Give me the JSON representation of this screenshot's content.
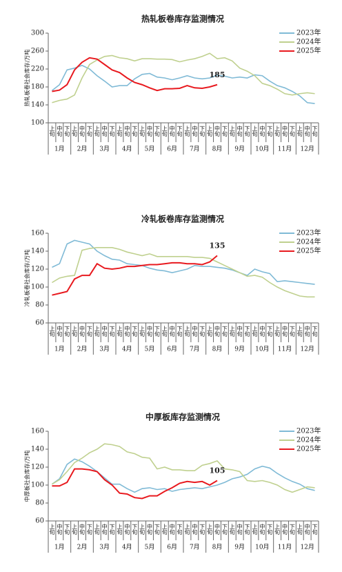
{
  "chart_data": [
    {
      "type": "line",
      "title": "热轧板卷库存监测情况",
      "y_label": "热轧板卷社会库存/万吨",
      "annotation": "185",
      "categories": [
        "上旬",
        "中旬",
        "下旬",
        "上旬",
        "中旬",
        "下旬",
        "上旬",
        "中旬",
        "下旬",
        "上旬",
        "中旬",
        "下旬",
        "上旬",
        "中旬",
        "下旬",
        "上旬",
        "中旬",
        "下旬",
        "上旬",
        "中旬",
        "下旬",
        "上旬",
        "中旬",
        "下旬",
        "上旬",
        "中旬",
        "下旬",
        "上旬",
        "中旬",
        "下旬",
        "上旬",
        "中旬",
        "下旬",
        "上旬",
        "中旬",
        "下旬"
      ],
      "months": [
        "1月",
        "2月",
        "3月",
        "4月",
        "5月",
        "6月",
        "7月",
        "8月",
        "9月",
        "10月",
        "11月",
        "12月"
      ],
      "ylim": [
        100,
        300
      ],
      "yticks": [
        100,
        140,
        180,
        220,
        260,
        300
      ],
      "series": [
        {
          "name": "2023年",
          "color": "#7fbad6",
          "values": [
            172,
            185,
            218,
            222,
            228,
            220,
            205,
            193,
            180,
            183,
            183,
            198,
            208,
            210,
            202,
            200,
            196,
            200,
            205,
            200,
            198,
            200,
            206,
            204,
            200,
            202,
            200,
            207,
            205,
            193,
            183,
            178,
            170,
            160,
            145,
            143
          ]
        },
        {
          "name": "2024年",
          "color": "#bfd08e",
          "values": [
            145,
            150,
            153,
            162,
            200,
            230,
            240,
            248,
            250,
            245,
            243,
            238,
            243,
            243,
            242,
            242,
            241,
            236,
            240,
            243,
            248,
            255,
            243,
            245,
            238,
            222,
            215,
            205,
            188,
            183,
            175,
            165,
            162,
            165,
            167,
            165
          ]
        },
        {
          "name": "2025年",
          "color": "#e8191e",
          "values": [
            170,
            173,
            185,
            218,
            235,
            245,
            242,
            230,
            218,
            212,
            200,
            190,
            185,
            178,
            172,
            176,
            176,
            177,
            183,
            178,
            177,
            180,
            185,
            null,
            null,
            null,
            null,
            null,
            null,
            null,
            null,
            null,
            null,
            null,
            null,
            null
          ]
        }
      ]
    },
    {
      "type": "line",
      "title": "冷轧板卷库存监测情况",
      "y_label": "冷轧板卷社会库存/万吨",
      "annotation": "135",
      "categories": [
        "上旬",
        "中旬",
        "下旬",
        "上旬",
        "中旬",
        "下旬",
        "上旬",
        "中旬",
        "下旬",
        "上旬",
        "中旬",
        "下旬",
        "上旬",
        "中旬",
        "下旬",
        "上旬",
        "中旬",
        "下旬",
        "上旬",
        "中旬",
        "下旬",
        "上旬",
        "中旬",
        "下旬",
        "上旬",
        "中旬",
        "下旬",
        "上旬",
        "中旬",
        "下旬",
        "上旬",
        "中旬",
        "下旬",
        "上旬",
        "中旬",
        "下旬"
      ],
      "months": [
        "1月",
        "2月",
        "3月",
        "4月",
        "5月",
        "6月",
        "7月",
        "8月",
        "9月",
        "10月",
        "11月",
        "12月"
      ],
      "ylim": [
        60,
        160
      ],
      "yticks": [
        60,
        80,
        100,
        120,
        140,
        160
      ],
      "series": [
        {
          "name": "2023年",
          "color": "#7fbad6",
          "values": [
            122,
            126,
            148,
            152,
            150,
            148,
            140,
            135,
            131,
            130,
            126,
            125,
            124,
            121,
            119,
            118,
            116,
            118,
            120,
            124,
            123,
            123,
            122,
            121,
            119,
            116,
            113,
            120,
            117,
            115,
            106,
            107,
            106,
            105,
            104,
            103
          ]
        },
        {
          "name": "2024年",
          "color": "#bfd08e",
          "values": [
            105,
            110,
            112,
            113,
            141,
            143,
            144,
            144,
            144,
            142,
            139,
            137,
            135,
            137,
            134,
            134,
            134,
            134,
            134,
            133,
            133,
            132,
            128,
            124,
            120,
            116,
            112,
            113,
            111,
            105,
            100,
            96,
            93,
            90,
            89,
            89
          ]
        },
        {
          "name": "2025年",
          "color": "#e8191e",
          "values": [
            91,
            93,
            95,
            109,
            113,
            113,
            126,
            121,
            120,
            121,
            123,
            123,
            124,
            125,
            125,
            126,
            127,
            127,
            126,
            126,
            125,
            128,
            135,
            null,
            null,
            null,
            null,
            null,
            null,
            null,
            null,
            null,
            null,
            null,
            null,
            null
          ]
        }
      ]
    },
    {
      "type": "line",
      "title": "中厚板库存监测情况",
      "y_label": "中厚板社会库存/万吨",
      "annotation": "105",
      "categories": [
        "上旬",
        "中旬",
        "下旬",
        "上旬",
        "中旬",
        "下旬",
        "上旬",
        "中旬",
        "下旬",
        "上旬",
        "中旬",
        "下旬",
        "上旬",
        "中旬",
        "下旬",
        "上旬",
        "中旬",
        "下旬",
        "上旬",
        "中旬",
        "下旬",
        "上旬",
        "中旬",
        "下旬",
        "上旬",
        "中旬",
        "下旬",
        "上旬",
        "中旬",
        "下旬",
        "上旬",
        "中旬",
        "下旬",
        "上旬",
        "中旬",
        "下旬"
      ],
      "months": [
        "1月",
        "2月",
        "3月",
        "4月",
        "5月",
        "6月",
        "7月",
        "8月",
        "9月",
        "10月",
        "11月",
        "12月"
      ],
      "ylim": [
        60,
        160
      ],
      "yticks": [
        60,
        80,
        100,
        120,
        140,
        160
      ],
      "series": [
        {
          "name": "2023年",
          "color": "#7fbad6",
          "values": [
            101,
            107,
            123,
            129,
            126,
            121,
            115,
            108,
            101,
            101,
            96,
            92,
            96,
            97,
            95,
            96,
            93,
            95,
            96,
            97,
            96,
            98,
            100,
            103,
            107,
            109,
            112,
            118,
            121,
            119,
            113,
            108,
            104,
            101,
            96,
            94
          ]
        },
        {
          "name": "2024年",
          "color": "#bfd08e",
          "values": [
            101,
            106,
            115,
            125,
            130,
            136,
            140,
            146,
            145,
            143,
            137,
            135,
            131,
            130,
            118,
            120,
            117,
            117,
            116,
            116,
            122,
            124,
            127,
            118,
            117,
            115,
            105,
            104,
            105,
            103,
            100,
            95,
            92,
            95,
            98,
            97
          ]
        },
        {
          "name": "2025年",
          "color": "#e8191e",
          "values": [
            99,
            99,
            103,
            118,
            118,
            117,
            115,
            106,
            100,
            91,
            90,
            86,
            85,
            88,
            88,
            93,
            97,
            102,
            104,
            103,
            104,
            100,
            105,
            null,
            null,
            null,
            null,
            null,
            null,
            null,
            null,
            null,
            null,
            null,
            null,
            null
          ]
        }
      ]
    }
  ]
}
